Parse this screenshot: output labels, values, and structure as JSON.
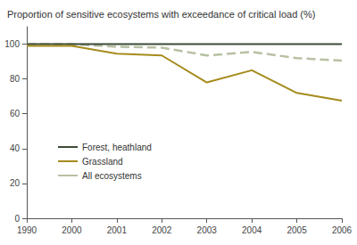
{
  "chart_data": {
    "type": "line",
    "title": "Proportion of sensitive ecosystems with exceedance of critical load (%)",
    "categories": [
      "1990",
      "2000",
      "2001",
      "2002",
      "2003",
      "2004",
      "2005",
      "2006"
    ],
    "series": [
      {
        "name": "Forest, heathland",
        "color": "#3b4a36",
        "line_style": "solid",
        "values": [
          100,
          100,
          100,
          100,
          100,
          100,
          100,
          100
        ]
      },
      {
        "name": "Grassland",
        "color": "#a58b1c",
        "line_style": "solid",
        "values": [
          99,
          99,
          94.5,
          93.5,
          78,
          85,
          72,
          67.5
        ]
      },
      {
        "name": "All ecosystems",
        "color": "#b7c0a3",
        "line_style": "dashed",
        "values": [
          100,
          100,
          98.5,
          98,
          93.5,
          95.5,
          92,
          90.5
        ]
      }
    ],
    "ylim": [
      0,
      110
    ],
    "yticks": [
      0,
      20,
      40,
      60,
      80,
      100
    ],
    "grid": false,
    "legend": "lower left"
  }
}
